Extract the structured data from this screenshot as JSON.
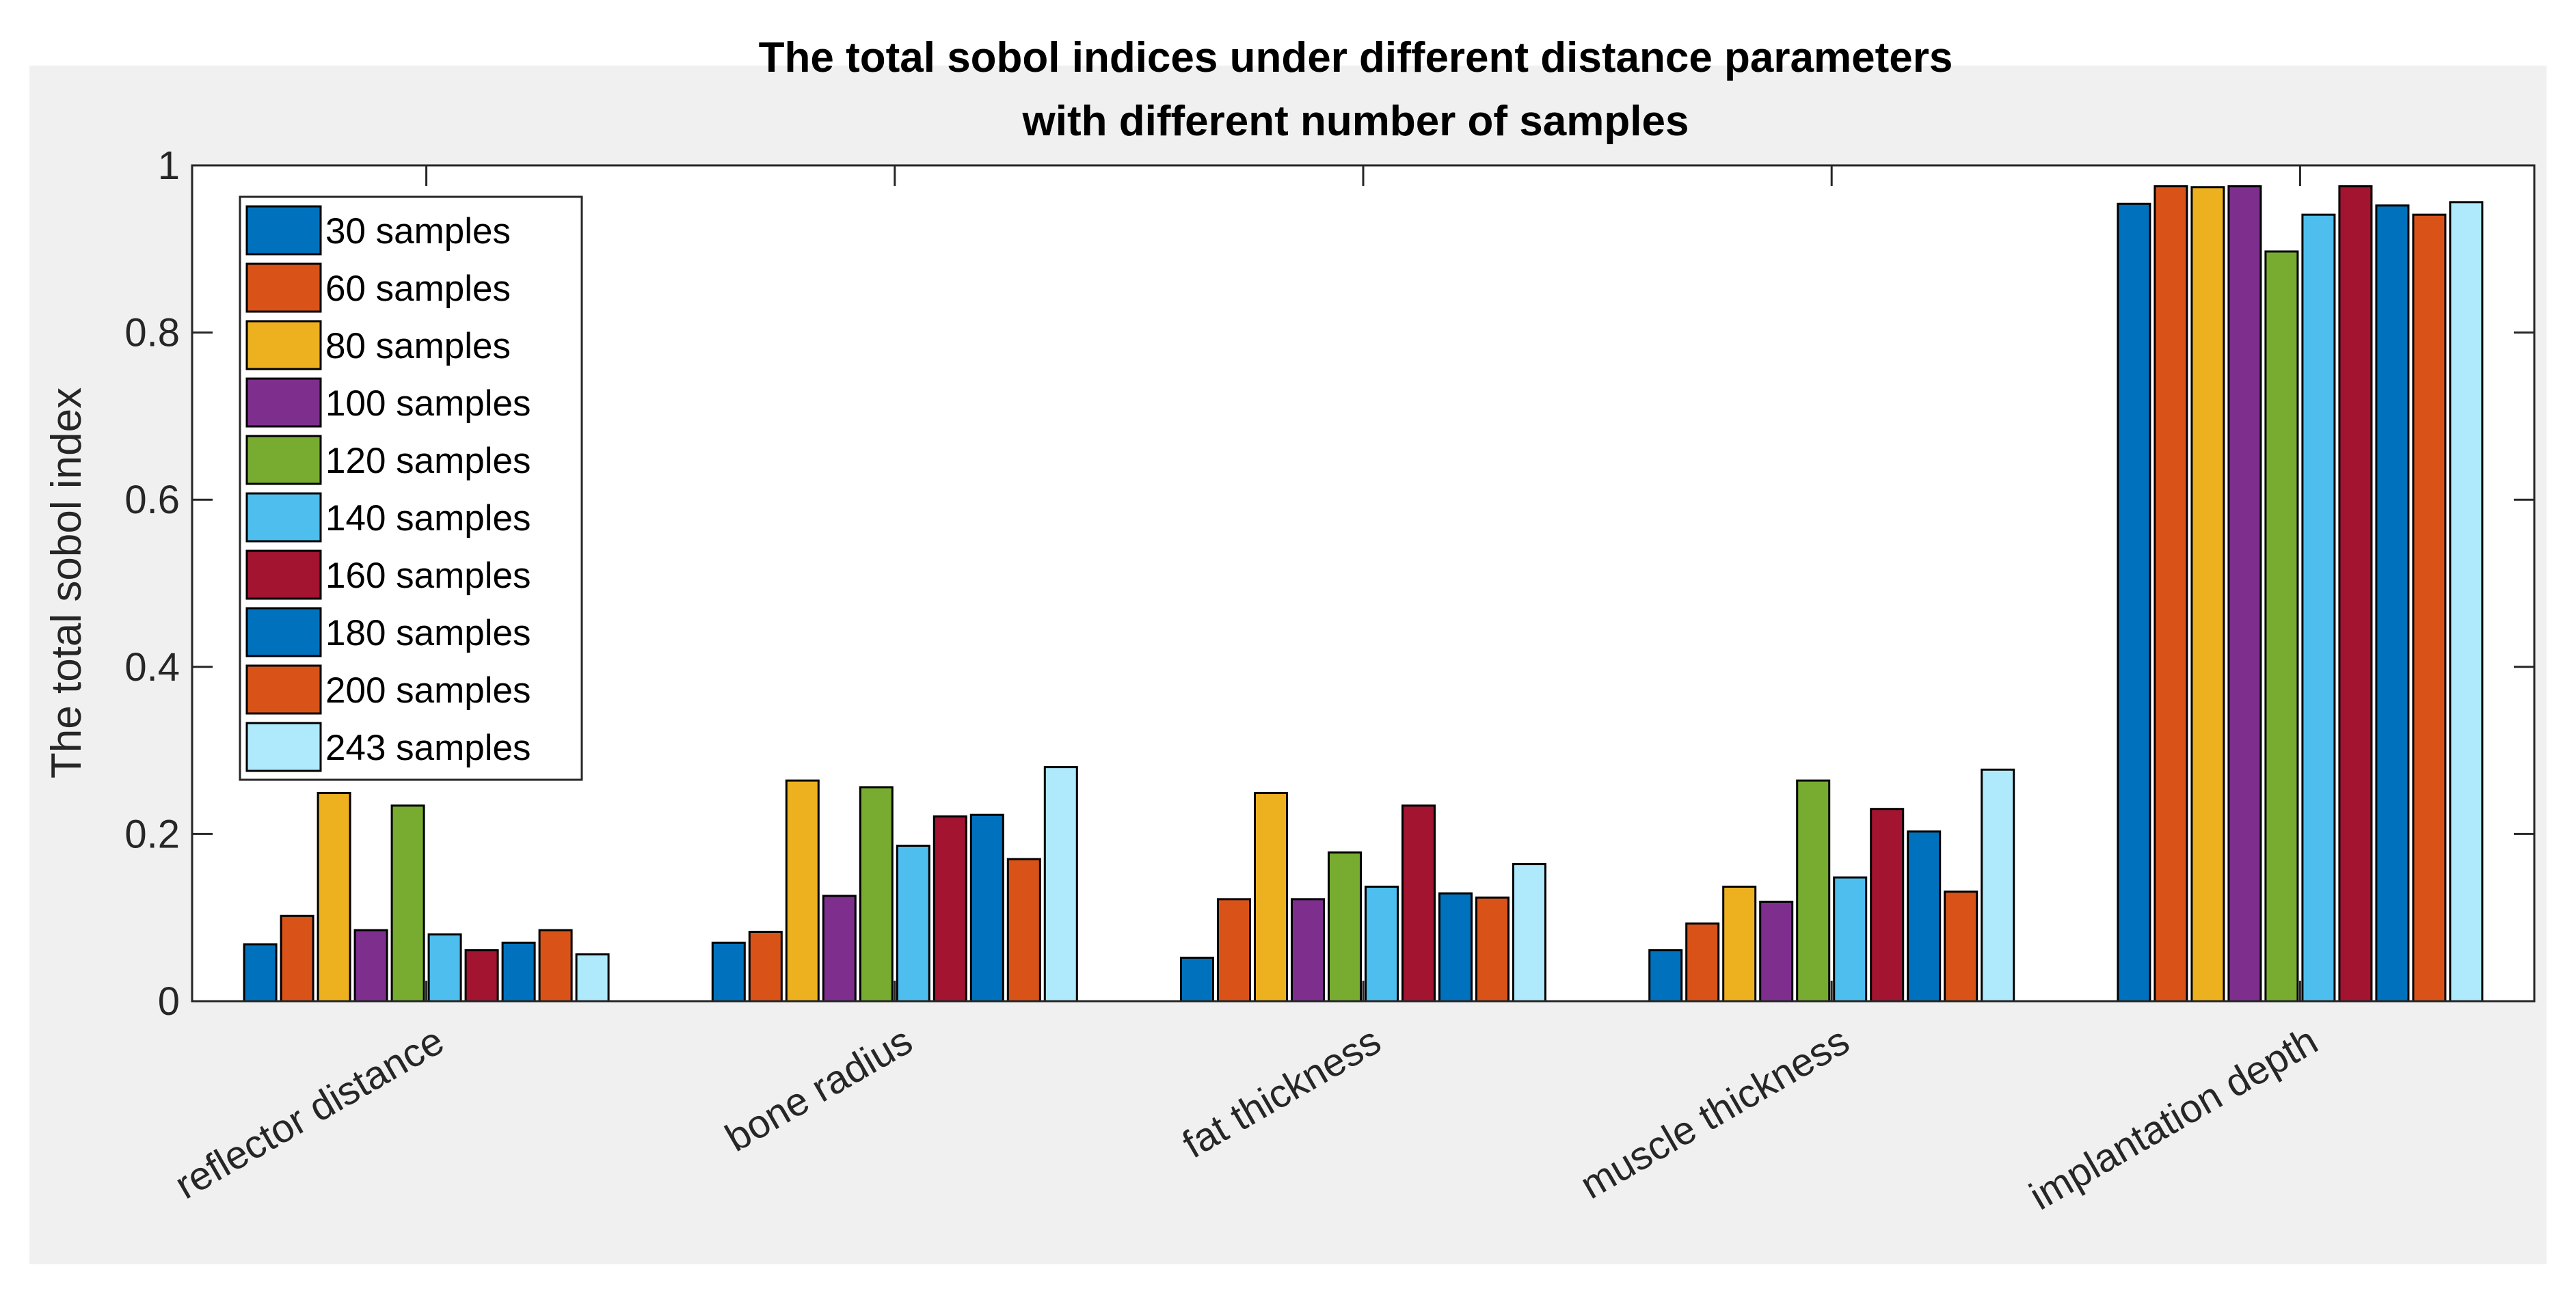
{
  "chart_data": {
    "type": "bar",
    "title": [
      "The total sobol indices under different distance parameters",
      "with different number of samples"
    ],
    "xlabel": "",
    "ylabel": "The total sobol index",
    "ylim": [
      0,
      1
    ],
    "yticks": [
      "0",
      "0.2",
      "0.4",
      "0.6",
      "0.8",
      "1"
    ],
    "grid": false,
    "legend_position": "top-left",
    "categories": [
      "reflector distance",
      "bone radius",
      "fat thickness",
      "muscle thickness",
      "implantation depth"
    ],
    "series": [
      {
        "name": "30 samples",
        "color": "#0072bd",
        "values": [
          0.068,
          0.07,
          0.052,
          0.061,
          0.954
        ]
      },
      {
        "name": "60 samples",
        "color": "#d95319",
        "values": [
          0.102,
          0.083,
          0.122,
          0.093,
          0.975
        ]
      },
      {
        "name": "80 samples",
        "color": "#edb120",
        "values": [
          0.249,
          0.264,
          0.249,
          0.137,
          0.974
        ]
      },
      {
        "name": "100 samples",
        "color": "#7e2f8e",
        "values": [
          0.085,
          0.126,
          0.122,
          0.119,
          0.975
        ]
      },
      {
        "name": "120 samples",
        "color": "#77ac30",
        "values": [
          0.234,
          0.256,
          0.178,
          0.264,
          0.897
        ]
      },
      {
        "name": "140 samples",
        "color": "#4dbeee",
        "values": [
          0.08,
          0.186,
          0.137,
          0.148,
          0.941
        ]
      },
      {
        "name": "160 samples",
        "color": "#a2142f",
        "values": [
          0.061,
          0.221,
          0.234,
          0.23,
          0.975
        ]
      },
      {
        "name": "180 samples",
        "color": "#0072bd",
        "values": [
          0.07,
          0.223,
          0.129,
          0.203,
          0.952
        ]
      },
      {
        "name": "200 samples",
        "color": "#d95319",
        "values": [
          0.085,
          0.17,
          0.124,
          0.131,
          0.941
        ]
      },
      {
        "name": "243 samples",
        "color": "#aeeafc",
        "values": [
          0.056,
          0.28,
          0.164,
          0.277,
          0.956
        ]
      }
    ]
  }
}
